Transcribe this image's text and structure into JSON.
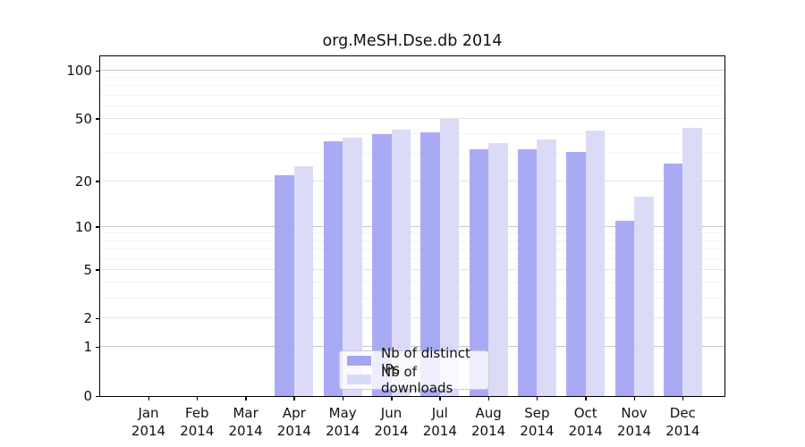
{
  "chart_data": {
    "type": "bar",
    "title": "org.MeSH.Dse.db 2014",
    "categories": [
      {
        "month": "Jan",
        "year": "2014"
      },
      {
        "month": "Feb",
        "year": "2014"
      },
      {
        "month": "Mar",
        "year": "2014"
      },
      {
        "month": "Apr",
        "year": "2014"
      },
      {
        "month": "May",
        "year": "2014"
      },
      {
        "month": "Jun",
        "year": "2014"
      },
      {
        "month": "Jul",
        "year": "2014"
      },
      {
        "month": "Aug",
        "year": "2014"
      },
      {
        "month": "Sep",
        "year": "2014"
      },
      {
        "month": "Oct",
        "year": "2014"
      },
      {
        "month": "Nov",
        "year": "2014"
      },
      {
        "month": "Dec",
        "year": "2014"
      }
    ],
    "series": [
      {
        "name": "Nb of distinct IPs",
        "color": "#a5a5f3",
        "values": [
          0,
          0,
          0,
          22,
          36,
          40,
          41,
          32,
          32,
          31,
          11,
          26
        ]
      },
      {
        "name": "Nb of downloads",
        "color": "#d9d9f8",
        "values": [
          0,
          0,
          0,
          25,
          38,
          43,
          50,
          35,
          37,
          42,
          16,
          44
        ]
      }
    ],
    "xlabel": "",
    "ylabel": "",
    "y_scale": "log1p",
    "ylim": [
      0,
      123
    ],
    "y_ticks_major": [
      0,
      1,
      2,
      5,
      10,
      20,
      50,
      100
    ],
    "y_ticks_minor": [
      3,
      4,
      6,
      7,
      8,
      9,
      30,
      40,
      60,
      70,
      80,
      90
    ],
    "grid": true,
    "legend_position": "lower center"
  }
}
